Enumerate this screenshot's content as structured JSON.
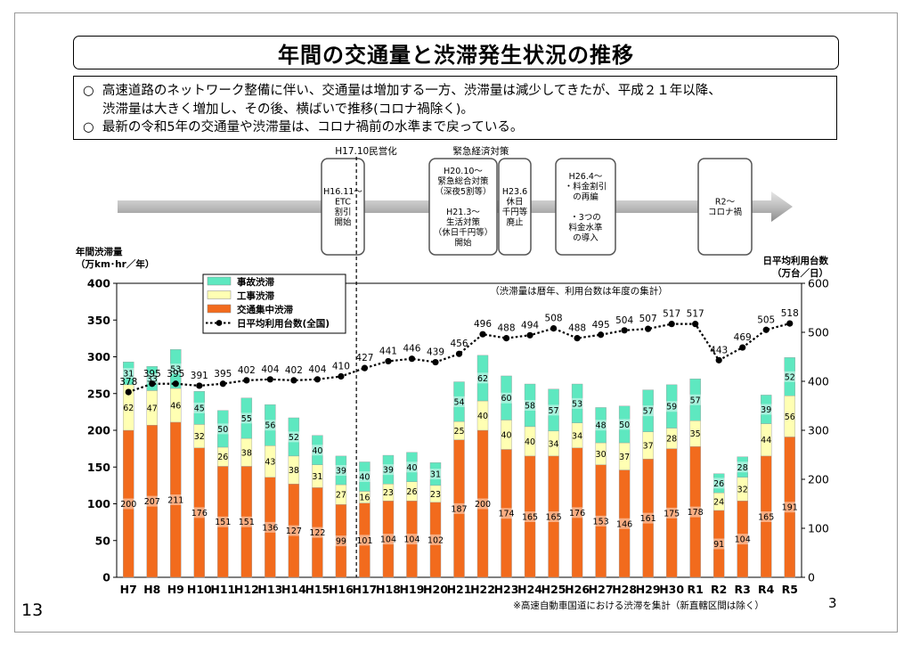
{
  "title": "年間の交通量と渋滞発生状況の推移",
  "summary": {
    "bullet_glyph": "○",
    "line1a": "高速道路のネットワーク整備に伴い、交通量は増加する一方、渋滞量は減少してきたが、平成２１年以降、",
    "line1b": "渋滞量は大きく増加し、その後、横ばいで推移(コロナ禍除く)。",
    "line2": "最新の令和5年の交通量や渋滞量は、コロナ禍前の水準まで戻っている。"
  },
  "timeline": {
    "privatization_label": "H17.10民営化",
    "emergency_label": "緊急経済対策",
    "events": [
      {
        "lines": [
          "H16.11～",
          "ETC",
          "割引",
          "開始"
        ]
      },
      {
        "lines": [
          "H20.10～",
          "緊急総合対策",
          "（深夜5割等）",
          "",
          "H21.3～",
          "生活対策",
          "（休日千円等）",
          "開始"
        ]
      },
      {
        "lines": [
          "H23.6",
          "休日",
          "千円等",
          "廃止"
        ]
      },
      {
        "lines": [
          "H26.4～",
          "・料金割引",
          "の再編",
          "",
          "・3つの",
          "料金水準",
          "の導入"
        ]
      },
      {
        "lines": [
          "R2～",
          "コロナ禍"
        ]
      }
    ]
  },
  "colors": {
    "congestion": "#F26B1D",
    "construction": "#FFFFB3",
    "accident": "#5EE8C0",
    "line": "#000000",
    "timeline_arrow": "#BDBDBD"
  },
  "page_left": "13",
  "page_right": "3",
  "chart_data": {
    "type": "bar",
    "stacked": true,
    "categories": [
      "H7",
      "H8",
      "H9",
      "H10",
      "H11",
      "H12",
      "H13",
      "H14",
      "H15",
      "H16",
      "H17",
      "H18",
      "H19",
      "H20",
      "H21",
      "H22",
      "H23",
      "H24",
      "H25",
      "H26",
      "H27",
      "H28",
      "H29",
      "H30",
      "R1",
      "R2",
      "R3",
      "R4",
      "R5"
    ],
    "series": [
      {
        "name": "交通集中渋滞",
        "values": [
          200,
          207,
          211,
          176,
          151,
          151,
          136,
          127,
          122,
          99,
          101,
          104,
          104,
          102,
          187,
          200,
          174,
          165,
          165,
          176,
          153,
          146,
          161,
          175,
          178,
          91,
          104,
          165,
          191
        ]
      },
      {
        "name": "工事渋滞",
        "values": [
          62,
          47,
          46,
          32,
          26,
          38,
          43,
          38,
          31,
          27,
          16,
          23,
          26,
          23,
          25,
          40,
          40,
          40,
          34,
          34,
          30,
          37,
          37,
          28,
          35,
          24,
          32,
          44,
          56
        ]
      },
      {
        "name": "事故渋滞",
        "values": [
          31,
          33,
          53,
          45,
          50,
          55,
          56,
          52,
          40,
          39,
          40,
          39,
          40,
          31,
          54,
          62,
          60,
          58,
          57,
          53,
          48,
          50,
          57,
          59,
          57,
          26,
          28,
          39,
          52
        ]
      }
    ],
    "line_series": {
      "name": "日平均利用台数(全国)",
      "axis": "right",
      "values": [
        378,
        395,
        395,
        391,
        395,
        402,
        404,
        402,
        404,
        410,
        427,
        441,
        446,
        439,
        456,
        496,
        488,
        494,
        508,
        488,
        495,
        504,
        507,
        517,
        517,
        443,
        469,
        505,
        518
      ]
    },
    "legend_order": [
      "事故渋滞",
      "工事渋滞",
      "交通集中渋滞",
      "日平均利用台数(全国)"
    ],
    "ylabel_left": [
      "年間渋滞量",
      "（万km･hr／年）"
    ],
    "ylabel_right": [
      "日平均利用台数",
      "（万台／日）"
    ],
    "ylim_left": [
      0,
      400
    ],
    "ylim_right": [
      0,
      600
    ],
    "yticks_left": [
      0,
      50,
      100,
      150,
      200,
      250,
      300,
      350,
      400
    ],
    "yticks_right": [
      0,
      100,
      200,
      300,
      400,
      500,
      600
    ],
    "annotation_top": "（渋滞量は暦年、利用台数は年度の集計）",
    "footnote": "※高速自動車国道における渋滞を集計（新直轄区間は除く）",
    "legend": "top-left"
  }
}
